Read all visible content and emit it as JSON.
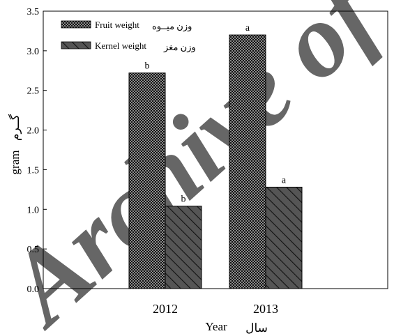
{
  "chart_data": {
    "type": "bar",
    "categories": [
      "2012",
      "2013"
    ],
    "series": [
      {
        "name": "Fruit weight",
        "name_fa": "وزن میــوه",
        "values": [
          2.72,
          3.2
        ],
        "labels": [
          "b",
          "a"
        ],
        "pattern": "checker",
        "color": "#1a1a1a"
      },
      {
        "name": "Kernel weight",
        "name_fa": "وزن مغز",
        "values": [
          1.04,
          1.28
        ],
        "labels": [
          "b",
          "a"
        ],
        "pattern": "hatch",
        "color": "#4a4a4a"
      }
    ],
    "ylim": [
      0,
      3.5
    ],
    "yticks": [
      "0.0",
      "0.5",
      "1.0",
      "1.5",
      "2.0",
      "2.5",
      "3.0",
      "3.5"
    ],
    "xlabel": "Year",
    "xlabel_fa": "سال",
    "ylabel": "gram",
    "ylabel_fa": "گــرم",
    "legend_position": "top-left",
    "grid": false
  },
  "watermark": {
    "text": "Archive of S",
    "color": "#000000"
  }
}
